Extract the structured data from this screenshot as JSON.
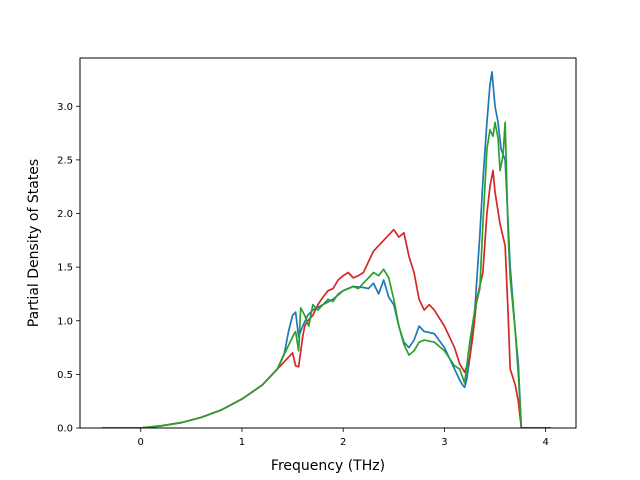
{
  "chart_data": {
    "type": "line",
    "title": "",
    "xlabel": "Frequency (THz)",
    "ylabel": "Partial Density of States",
    "xlim": [
      -0.6,
      4.3
    ],
    "ylim": [
      0.0,
      3.45
    ],
    "xticks": [
      0,
      1,
      2,
      3,
      4
    ],
    "xtick_labels": [
      "0",
      "1",
      "2",
      "3",
      "4"
    ],
    "yticks": [
      0.0,
      0.5,
      1.0,
      1.5,
      2.0,
      2.5,
      3.0
    ],
    "ytick_labels": [
      "0.0",
      "0.5",
      "1.0",
      "1.5",
      "2.0",
      "2.5",
      "3.0"
    ],
    "grid": false,
    "legend": "none",
    "series": [
      {
        "color": "#1f77b4",
        "points": [
          [
            -0.38,
            0.0
          ],
          [
            -0.1,
            0.0
          ],
          [
            0.0,
            0.0
          ],
          [
            0.2,
            0.02
          ],
          [
            0.4,
            0.05
          ],
          [
            0.6,
            0.1
          ],
          [
            0.8,
            0.17
          ],
          [
            1.0,
            0.27
          ],
          [
            1.2,
            0.4
          ],
          [
            1.35,
            0.55
          ],
          [
            1.42,
            0.7
          ],
          [
            1.46,
            0.9
          ],
          [
            1.5,
            1.05
          ],
          [
            1.53,
            1.08
          ],
          [
            1.56,
            0.85
          ],
          [
            1.6,
            0.95
          ],
          [
            1.65,
            1.05
          ],
          [
            1.7,
            1.1
          ],
          [
            1.8,
            1.15
          ],
          [
            1.9,
            1.2
          ],
          [
            2.0,
            1.28
          ],
          [
            2.1,
            1.32
          ],
          [
            2.2,
            1.31
          ],
          [
            2.25,
            1.3
          ],
          [
            2.3,
            1.35
          ],
          [
            2.35,
            1.25
          ],
          [
            2.4,
            1.38
          ],
          [
            2.45,
            1.22
          ],
          [
            2.5,
            1.15
          ],
          [
            2.55,
            0.95
          ],
          [
            2.6,
            0.8
          ],
          [
            2.65,
            0.75
          ],
          [
            2.7,
            0.82
          ],
          [
            2.75,
            0.95
          ],
          [
            2.8,
            0.9
          ],
          [
            2.9,
            0.88
          ],
          [
            3.0,
            0.75
          ],
          [
            3.05,
            0.65
          ],
          [
            3.1,
            0.55
          ],
          [
            3.15,
            0.45
          ],
          [
            3.18,
            0.4
          ],
          [
            3.2,
            0.38
          ],
          [
            3.22,
            0.45
          ],
          [
            3.25,
            0.65
          ],
          [
            3.3,
            1.1
          ],
          [
            3.35,
            1.8
          ],
          [
            3.38,
            2.3
          ],
          [
            3.42,
            2.85
          ],
          [
            3.45,
            3.2
          ],
          [
            3.47,
            3.32
          ],
          [
            3.5,
            3.0
          ],
          [
            3.53,
            2.85
          ],
          [
            3.56,
            2.6
          ],
          [
            3.6,
            2.5
          ],
          [
            3.65,
            1.5
          ],
          [
            3.7,
            0.9
          ],
          [
            3.73,
            0.6
          ],
          [
            3.76,
            0.0
          ],
          [
            4.05,
            0.0
          ]
        ]
      },
      {
        "color": "#d62728",
        "points": [
          [
            -0.38,
            0.0
          ],
          [
            -0.1,
            0.0
          ],
          [
            0.0,
            0.0
          ],
          [
            0.2,
            0.02
          ],
          [
            0.4,
            0.05
          ],
          [
            0.6,
            0.1
          ],
          [
            0.8,
            0.17
          ],
          [
            1.0,
            0.27
          ],
          [
            1.2,
            0.4
          ],
          [
            1.35,
            0.55
          ],
          [
            1.45,
            0.65
          ],
          [
            1.5,
            0.7
          ],
          [
            1.53,
            0.58
          ],
          [
            1.56,
            0.57
          ],
          [
            1.6,
            0.85
          ],
          [
            1.62,
            0.95
          ],
          [
            1.65,
            1.0
          ],
          [
            1.7,
            1.05
          ],
          [
            1.75,
            1.15
          ],
          [
            1.8,
            1.22
          ],
          [
            1.85,
            1.28
          ],
          [
            1.9,
            1.3
          ],
          [
            1.95,
            1.38
          ],
          [
            2.0,
            1.42
          ],
          [
            2.05,
            1.45
          ],
          [
            2.1,
            1.4
          ],
          [
            2.15,
            1.42
          ],
          [
            2.2,
            1.45
          ],
          [
            2.25,
            1.55
          ],
          [
            2.3,
            1.65
          ],
          [
            2.35,
            1.7
          ],
          [
            2.4,
            1.75
          ],
          [
            2.45,
            1.8
          ],
          [
            2.5,
            1.85
          ],
          [
            2.55,
            1.78
          ],
          [
            2.6,
            1.82
          ],
          [
            2.65,
            1.6
          ],
          [
            2.7,
            1.45
          ],
          [
            2.75,
            1.2
          ],
          [
            2.8,
            1.1
          ],
          [
            2.85,
            1.15
          ],
          [
            2.9,
            1.1
          ],
          [
            3.0,
            0.95
          ],
          [
            3.1,
            0.75
          ],
          [
            3.15,
            0.6
          ],
          [
            3.2,
            0.52
          ],
          [
            3.25,
            0.65
          ],
          [
            3.28,
            0.85
          ],
          [
            3.32,
            1.2
          ],
          [
            3.38,
            1.45
          ],
          [
            3.42,
            2.0
          ],
          [
            3.45,
            2.25
          ],
          [
            3.48,
            2.4
          ],
          [
            3.5,
            2.2
          ],
          [
            3.55,
            1.9
          ],
          [
            3.6,
            1.7
          ],
          [
            3.63,
            1.05
          ],
          [
            3.65,
            0.55
          ],
          [
            3.7,
            0.4
          ],
          [
            3.73,
            0.25
          ],
          [
            3.76,
            0.0
          ],
          [
            4.05,
            0.0
          ]
        ]
      },
      {
        "color": "#2ca02c",
        "points": [
          [
            -0.38,
            0.0
          ],
          [
            -0.1,
            0.0
          ],
          [
            0.0,
            0.0
          ],
          [
            0.2,
            0.02
          ],
          [
            0.4,
            0.05
          ],
          [
            0.6,
            0.1
          ],
          [
            0.8,
            0.17
          ],
          [
            1.0,
            0.27
          ],
          [
            1.2,
            0.4
          ],
          [
            1.35,
            0.55
          ],
          [
            1.45,
            0.75
          ],
          [
            1.5,
            0.85
          ],
          [
            1.53,
            0.9
          ],
          [
            1.56,
            0.72
          ],
          [
            1.58,
            1.12
          ],
          [
            1.62,
            1.05
          ],
          [
            1.66,
            0.95
          ],
          [
            1.7,
            1.15
          ],
          [
            1.75,
            1.1
          ],
          [
            1.8,
            1.15
          ],
          [
            1.85,
            1.2
          ],
          [
            1.9,
            1.18
          ],
          [
            1.95,
            1.25
          ],
          [
            2.0,
            1.28
          ],
          [
            2.05,
            1.3
          ],
          [
            2.1,
            1.32
          ],
          [
            2.15,
            1.3
          ],
          [
            2.2,
            1.35
          ],
          [
            2.25,
            1.4
          ],
          [
            2.3,
            1.45
          ],
          [
            2.35,
            1.42
          ],
          [
            2.4,
            1.48
          ],
          [
            2.45,
            1.4
          ],
          [
            2.5,
            1.2
          ],
          [
            2.55,
            0.95
          ],
          [
            2.6,
            0.78
          ],
          [
            2.65,
            0.68
          ],
          [
            2.7,
            0.72
          ],
          [
            2.75,
            0.8
          ],
          [
            2.8,
            0.82
          ],
          [
            2.9,
            0.8
          ],
          [
            3.0,
            0.72
          ],
          [
            3.05,
            0.65
          ],
          [
            3.1,
            0.58
          ],
          [
            3.15,
            0.55
          ],
          [
            3.2,
            0.42
          ],
          [
            3.25,
            0.8
          ],
          [
            3.3,
            1.1
          ],
          [
            3.35,
            1.3
          ],
          [
            3.38,
            1.9
          ],
          [
            3.42,
            2.6
          ],
          [
            3.45,
            2.78
          ],
          [
            3.48,
            2.72
          ],
          [
            3.5,
            2.85
          ],
          [
            3.53,
            2.7
          ],
          [
            3.55,
            2.4
          ],
          [
            3.58,
            2.55
          ],
          [
            3.6,
            2.85
          ],
          [
            3.63,
            1.8
          ],
          [
            3.65,
            1.4
          ],
          [
            3.7,
            0.9
          ],
          [
            3.73,
            0.5
          ],
          [
            3.76,
            0.0
          ],
          [
            4.05,
            0.0
          ]
        ]
      }
    ]
  }
}
